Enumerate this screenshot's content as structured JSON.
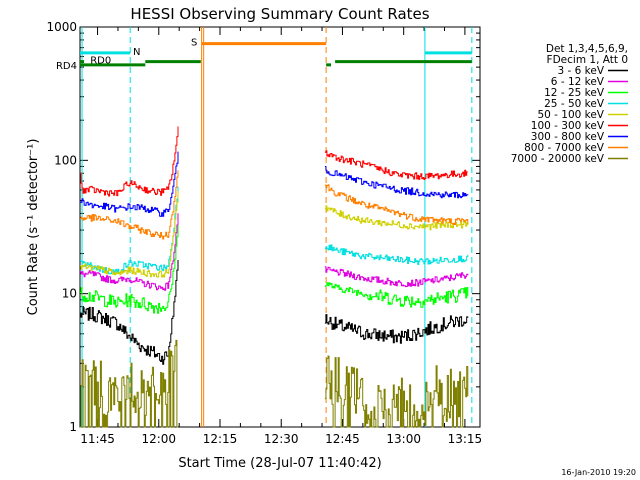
{
  "chart_data": {
    "type": "line",
    "title": "HESSI Observing Summary Count Rates",
    "xlabel": "Start Time (28-Jul-07 11:40:42)",
    "ylabel": "Count Rate (s⁻¹ detector⁻¹)",
    "yscale": "log",
    "ylim": [
      1,
      1000
    ],
    "y_ticks": [
      "1",
      "10",
      "100",
      "1000"
    ],
    "xlim_minutes": [
      0,
      98
    ],
    "x_ticks": [
      {
        "label": "11:45",
        "t": 4.3
      },
      {
        "label": "12:00",
        "t": 19.3
      },
      {
        "label": "12:15",
        "t": 34.3
      },
      {
        "label": "12:30",
        "t": 49.3
      },
      {
        "label": "12:45",
        "t": 64.3
      },
      {
        "label": "13:00",
        "t": 79.3
      },
      {
        "label": "13:15",
        "t": 94.3
      }
    ],
    "legend": {
      "placement": "right",
      "header": [
        "Det 1,3,4,5,6,9,",
        "FDecim 1, Att 0"
      ]
    },
    "series": [
      {
        "name": "3 - 6 keV",
        "color": "#000000",
        "points": [
          [
            0,
            7
          ],
          [
            3,
            7
          ],
          [
            6,
            6.5
          ],
          [
            9,
            6
          ],
          [
            12,
            4.8
          ],
          [
            15,
            4
          ],
          [
            18,
            3.6
          ],
          [
            20,
            3.3
          ],
          [
            21.5,
            3.5
          ],
          [
            22.5,
            6
          ],
          [
            23.5,
            12
          ],
          [
            24,
            18
          ],
          [
            60,
            6.5
          ],
          [
            63,
            5.8
          ],
          [
            70,
            5
          ],
          [
            78,
            4.7
          ],
          [
            82,
            5
          ],
          [
            86,
            5.5
          ],
          [
            90,
            6
          ],
          [
            95,
            6.5
          ]
        ]
      },
      {
        "name": "6 - 12 keV",
        "color": "#e000e0",
        "points": [
          [
            0,
            14
          ],
          [
            3,
            14
          ],
          [
            6,
            13
          ],
          [
            9,
            12.5
          ],
          [
            12,
            13
          ],
          [
            15,
            12
          ],
          [
            18,
            11.5
          ],
          [
            20,
            11
          ],
          [
            21.5,
            11.5
          ],
          [
            22.5,
            16
          ],
          [
            23.5,
            28
          ],
          [
            24,
            40
          ],
          [
            60,
            15
          ],
          [
            63,
            14.5
          ],
          [
            70,
            13
          ],
          [
            78,
            12
          ],
          [
            82,
            12
          ],
          [
            86,
            12.5
          ],
          [
            90,
            13
          ],
          [
            95,
            14
          ]
        ]
      },
      {
        "name": "12 - 25 keV",
        "color": "#00ff00",
        "points": [
          [
            0,
            10
          ],
          [
            3,
            9.5
          ],
          [
            6,
            9
          ],
          [
            9,
            8.5
          ],
          [
            12,
            9
          ],
          [
            15,
            8.5
          ],
          [
            18,
            8
          ],
          [
            20,
            8
          ],
          [
            21.5,
            8.2
          ],
          [
            22.5,
            12
          ],
          [
            23.5,
            22
          ],
          [
            24,
            32
          ],
          [
            60,
            12
          ],
          [
            63,
            11
          ],
          [
            70,
            10
          ],
          [
            78,
            9
          ],
          [
            82,
            8.8
          ],
          [
            86,
            9
          ],
          [
            90,
            9.5
          ],
          [
            95,
            10
          ]
        ]
      },
      {
        "name": "25 - 50 keV",
        "color": "#00e0e0",
        "points": [
          [
            0,
            17
          ],
          [
            3,
            16
          ],
          [
            6,
            15
          ],
          [
            9,
            14.5
          ],
          [
            12,
            17
          ],
          [
            15,
            16.5
          ],
          [
            18,
            16
          ],
          [
            20,
            15.5
          ],
          [
            21.5,
            16
          ],
          [
            22.5,
            24
          ],
          [
            23.5,
            45
          ],
          [
            24,
            65
          ],
          [
            60,
            23
          ],
          [
            63,
            21
          ],
          [
            70,
            19
          ],
          [
            78,
            18
          ],
          [
            82,
            17.5
          ],
          [
            86,
            17.5
          ],
          [
            90,
            18
          ],
          [
            95,
            18.5
          ]
        ]
      },
      {
        "name": "50 - 100 keV",
        "color": "#d0d000",
        "points": [
          [
            0,
            16
          ],
          [
            3,
            15.5
          ],
          [
            6,
            15
          ],
          [
            9,
            14
          ],
          [
            12,
            15
          ],
          [
            15,
            14.5
          ],
          [
            18,
            14
          ],
          [
            20,
            14
          ],
          [
            21.5,
            14.5
          ],
          [
            22.5,
            22
          ],
          [
            23.5,
            42
          ],
          [
            24,
            60
          ],
          [
            60,
            45
          ],
          [
            63,
            40
          ],
          [
            70,
            35
          ],
          [
            78,
            33
          ],
          [
            82,
            32
          ],
          [
            86,
            32
          ],
          [
            90,
            33
          ],
          [
            95,
            33
          ]
        ]
      },
      {
        "name": "100 - 300 keV",
        "color": "#ff0000",
        "points": [
          [
            0,
            78
          ],
          [
            0.5,
            60
          ],
          [
            1,
            60
          ],
          [
            3,
            60
          ],
          [
            6,
            58
          ],
          [
            9,
            56
          ],
          [
            12,
            68
          ],
          [
            15,
            62
          ],
          [
            18,
            58
          ],
          [
            20,
            58
          ],
          [
            21.5,
            60
          ],
          [
            22.5,
            80
          ],
          [
            23.5,
            130
          ],
          [
            24,
            170
          ],
          [
            60,
            115
          ],
          [
            63,
            105
          ],
          [
            70,
            92
          ],
          [
            78,
            78
          ],
          [
            82,
            76
          ],
          [
            86,
            76
          ],
          [
            90,
            78
          ],
          [
            95,
            80
          ]
        ]
      },
      {
        "name": "300 - 800 keV",
        "color": "#0000ff",
        "points": [
          [
            0,
            50
          ],
          [
            3,
            46
          ],
          [
            6,
            45
          ],
          [
            9,
            43
          ],
          [
            12,
            45
          ],
          [
            15,
            44
          ],
          [
            18,
            42
          ],
          [
            20,
            40
          ],
          [
            21.5,
            42
          ],
          [
            22.5,
            55
          ],
          [
            23.5,
            90
          ],
          [
            24,
            110
          ],
          [
            60,
            85
          ],
          [
            63,
            78
          ],
          [
            70,
            68
          ],
          [
            78,
            60
          ],
          [
            82,
            58
          ],
          [
            86,
            56
          ],
          [
            90,
            55
          ],
          [
            95,
            55
          ]
        ]
      },
      {
        "name": "800 - 7000 keV",
        "color": "#ff8000",
        "points": [
          [
            0,
            37
          ],
          [
            3,
            37
          ],
          [
            6,
            36
          ],
          [
            9,
            35
          ],
          [
            12,
            32
          ],
          [
            15,
            30
          ],
          [
            18,
            28
          ],
          [
            20,
            27
          ],
          [
            21.5,
            28
          ],
          [
            22.5,
            38
          ],
          [
            23.5,
            65
          ],
          [
            24,
            85
          ],
          [
            60,
            65
          ],
          [
            63,
            56
          ],
          [
            70,
            46
          ],
          [
            78,
            40
          ],
          [
            82,
            37
          ],
          [
            86,
            36
          ],
          [
            90,
            35
          ],
          [
            95,
            35
          ]
        ]
      },
      {
        "name": "7000 - 20000 keV",
        "color": "#808000",
        "points": [
          [
            0,
            2.5
          ],
          [
            5,
            2
          ],
          [
            10,
            1.6
          ],
          [
            12,
            2.2
          ],
          [
            15,
            1.7
          ],
          [
            18,
            1.8
          ],
          [
            20,
            2
          ],
          [
            22,
            2.5
          ],
          [
            24,
            3
          ],
          [
            60,
            2.5
          ],
          [
            63,
            2.2
          ],
          [
            66,
            2
          ],
          [
            70,
            1.5
          ],
          [
            75,
            1.2
          ],
          [
            78,
            1.6
          ],
          [
            84,
            1.3
          ],
          [
            87,
            2
          ],
          [
            90,
            1.7
          ],
          [
            95,
            2
          ]
        ]
      }
    ],
    "state_bars": [
      {
        "label": "N",
        "color": "#00e0e0",
        "y": 640,
        "segments": [
          [
            0,
            12.3
          ],
          [
            84.5,
            96
          ]
        ]
      },
      {
        "label": "S",
        "color": "#ff8000",
        "y": 750,
        "segments": [
          [
            29.8,
            60.3
          ]
        ]
      },
      {
        "label": "RD0",
        "color": "#008000",
        "y": 550,
        "segments": [
          [
            0,
            1
          ]
        ]
      },
      {
        "label": "RD4",
        "color": "#008000",
        "y": 520,
        "segments": [
          [
            0,
            16
          ],
          [
            60.3,
            61.5
          ]
        ]
      },
      {
        "label": "",
        "color": "#008000",
        "y": 550,
        "segments": [
          [
            16,
            29.6
          ],
          [
            62.5,
            96
          ]
        ]
      }
    ],
    "vertical_markers": [
      {
        "t": 0.5,
        "color": "#00e0e0",
        "style": "solid"
      },
      {
        "t": 12.3,
        "color": "#00e0e0",
        "style": "dashed"
      },
      {
        "t": 29.8,
        "color": "#ff8000",
        "style": "solid"
      },
      {
        "t": 30.3,
        "color": "#ff8000",
        "style": "solid"
      },
      {
        "t": 60.3,
        "color": "#ff8000",
        "style": "dashed"
      },
      {
        "t": 84.5,
        "color": "#00e0e0",
        "style": "solid"
      },
      {
        "t": 96,
        "color": "#00e0e0",
        "style": "dashed"
      }
    ]
  },
  "footer_timestamp": "16-Jan-2010 19:20"
}
